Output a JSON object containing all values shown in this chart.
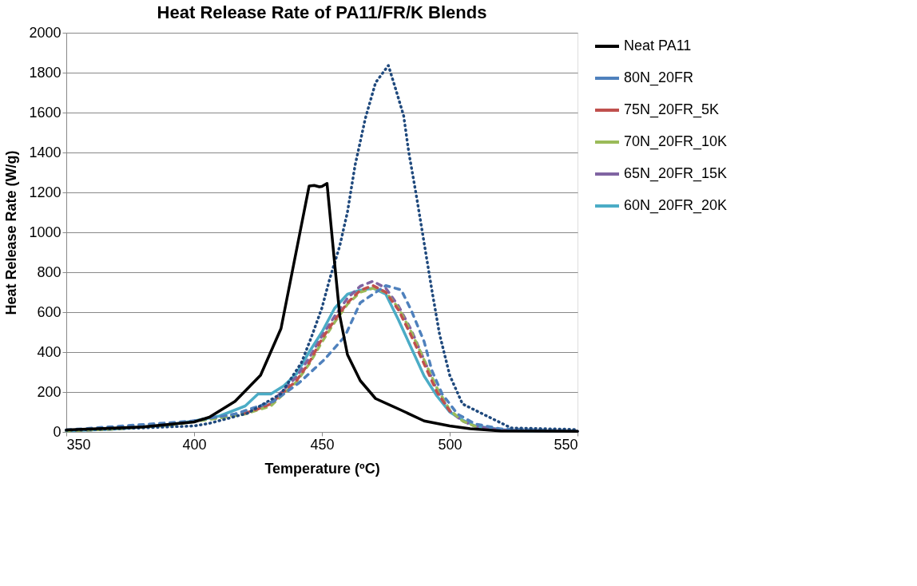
{
  "chart_data": {
    "type": "line",
    "title": "Heat Release Rate of PA11/FR/K Blends",
    "xlabel": "Temperature (ºC)",
    "ylabel": "Heat Release Rate (W/g)",
    "xlim": [
      350,
      550
    ],
    "xticks": [
      350,
      400,
      450,
      500,
      550
    ],
    "ylim": [
      0,
      2000
    ],
    "yticks": [
      0,
      200,
      400,
      600,
      800,
      1000,
      1200,
      1400,
      1600,
      1800,
      2000
    ],
    "grid": "y",
    "legend": "right",
    "marker": "none",
    "series": [
      {
        "name": "Neat PA11",
        "color": "#000000",
        "line_style": "solid",
        "x": [
          350,
          380,
          400,
          406,
          416,
          426,
          434,
          439,
          443,
          445,
          447,
          449,
          450,
          452,
          455,
          457,
          460,
          465,
          471,
          481,
          490,
          500,
          508,
          520,
          550
        ],
        "values": [
          10,
          25,
          50,
          74,
          153,
          284,
          518,
          842,
          1102,
          1232,
          1235,
          1228,
          1230,
          1245,
          842,
          582,
          387,
          257,
          167,
          109,
          55,
          30,
          16,
          5,
          3
        ]
      },
      {
        "color": "#1f497d",
        "line_style": "dotted",
        "x": [
          350,
          380,
          400,
          406,
          421,
          434,
          442,
          446,
          450,
          453,
          457,
          460,
          463,
          467,
          471,
          476,
          479,
          482,
          484,
          487,
          490,
          493,
          496,
          500,
          505,
          524,
          550
        ],
        "values": [
          8,
          20,
          30,
          43,
          94,
          191,
          347,
          479,
          621,
          764,
          933,
          1102,
          1337,
          1571,
          1750,
          1836,
          1712,
          1583,
          1400,
          1180,
          946,
          712,
          491,
          284,
          140,
          20,
          12
        ]
      },
      {
        "name": "80N_20FR",
        "color": "#4f81bd",
        "line_style": "dashed",
        "x": [
          350,
          400,
          416,
          431,
          441,
          451,
          459,
          465,
          475,
          481,
          485,
          490,
          493,
          497,
          503,
          510,
          520,
          550
        ],
        "values": [
          10,
          55,
          90,
          153,
          245,
          363,
          479,
          647,
          733,
          712,
          608,
          452,
          309,
          191,
          90,
          40,
          15,
          5
        ]
      },
      {
        "name": "75N_20FR_5K",
        "color": "#c0504d",
        "line_style": "dashed",
        "x": [
          420,
          425,
          430,
          435,
          440,
          445,
          450,
          455,
          460,
          465,
          470,
          475,
          480,
          485,
          490,
          495,
          500
        ],
        "values": [
          94,
          115,
          140,
          200,
          256,
          347,
          466,
          560,
          647,
          710,
          733,
          700,
          610,
          480,
          340,
          200,
          105
        ]
      },
      {
        "name": "70N_20FR_10K",
        "color": "#9bbb59",
        "line_style": "dashed",
        "x": [
          350,
          370,
          390,
          400,
          410,
          420,
          425,
          430,
          435,
          440,
          445,
          450,
          455,
          460,
          465,
          470,
          475,
          480,
          485,
          490,
          495,
          500,
          505,
          510
        ],
        "values": [
          5,
          15,
          33,
          52,
          70,
          90,
          110,
          130,
          190,
          250,
          340,
          450,
          550,
          640,
          700,
          720,
          700,
          620,
          500,
          360,
          220,
          110,
          55,
          28
        ]
      },
      {
        "name": "65N_20FR_15K",
        "color": "#8064a2",
        "line_style": "dashed",
        "x": [
          350,
          370,
          390,
          400,
          410,
          420,
          425,
          430,
          435,
          440,
          445,
          450,
          455,
          460,
          465,
          470,
          475,
          480,
          485,
          490,
          495,
          500,
          505,
          510,
          520,
          530,
          550
        ],
        "values": [
          5,
          15,
          35,
          55,
          72,
          95,
          120,
          145,
          210,
          275,
          370,
          480,
          580,
          670,
          730,
          755,
          720,
          630,
          510,
          360,
          210,
          105,
          55,
          28,
          10,
          5,
          3
        ]
      },
      {
        "name": "60N_20FR_20K",
        "color": "#4bacc6",
        "line_style": "solid",
        "x": [
          350,
          370,
          390,
          400,
          410,
          420,
          425,
          430,
          435,
          440,
          445,
          450,
          455,
          460,
          465,
          470,
          475,
          480,
          485,
          490,
          495,
          500,
          505,
          510,
          520,
          530,
          550
        ],
        "values": [
          5,
          15,
          35,
          55,
          80,
          130,
          190,
          190,
          230,
          290,
          400,
          500,
          620,
          690,
          710,
          720,
          690,
          560,
          420,
          280,
          180,
          100,
          60,
          30,
          12,
          5,
          3
        ]
      }
    ]
  }
}
